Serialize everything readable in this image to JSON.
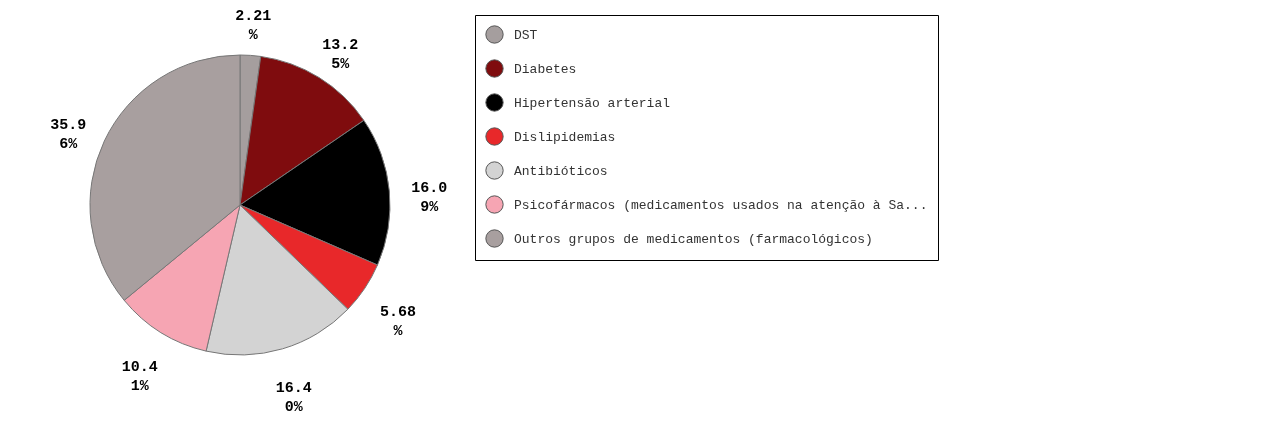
{
  "chart_data": {
    "type": "pie",
    "categories": [
      "DST",
      "Diabetes",
      "Hipertensão arterial",
      "Dislipidemias",
      "Antibióticos",
      "Psicofármacos (medicamentos usados na atenção à Sa...",
      "Outros grupos de medicamentos (farmacológicos)"
    ],
    "values": [
      2.21,
      13.25,
      16.09,
      5.68,
      16.4,
      10.41,
      35.96
    ],
    "colors": [
      "#a59e9e",
      "#7f0c0e",
      "#000000",
      "#e8282a",
      "#d3d3d3",
      "#f6a5b3",
      "#a89f9f"
    ],
    "value_labels": [
      "2.21%",
      "13.25%",
      "16.09%",
      "5.68%",
      "16.40%",
      "10.41%",
      "35.96%"
    ],
    "legend": "right"
  }
}
